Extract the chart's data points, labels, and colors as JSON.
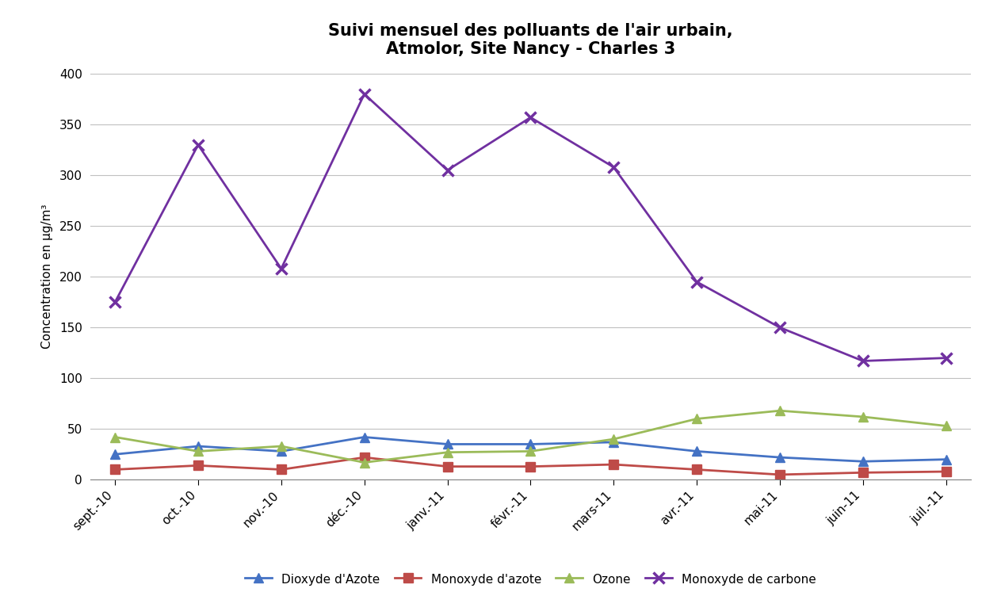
{
  "title_line1": "Suivi mensuel des polluants de l'air urbain,",
  "title_line2": "Atmolor, Site Nancy - Charles 3",
  "ylabel": "Concentration en µg/m³",
  "months": [
    "sept.-10",
    "oct.-10",
    "nov.-10",
    "déc.-10",
    "janv.-11",
    "févr.-11",
    "mars-11",
    "avr.-11",
    "mai-11",
    "juin-11",
    "juil.-11"
  ],
  "dioxyde_azote": [
    25,
    33,
    28,
    42,
    35,
    35,
    37,
    28,
    22,
    18,
    20
  ],
  "monoxyde_azote": [
    10,
    14,
    10,
    22,
    13,
    13,
    15,
    10,
    5,
    7,
    8
  ],
  "ozone": [
    42,
    28,
    33,
    17,
    27,
    28,
    40,
    60,
    68,
    62,
    53
  ],
  "monoxyde_carbone": [
    175,
    330,
    208,
    380,
    305,
    357,
    308,
    195,
    150,
    117,
    120
  ],
  "ylim": [
    0,
    400
  ],
  "yticks": [
    0,
    50,
    100,
    150,
    200,
    250,
    300,
    350,
    400
  ],
  "color_dioxyde_azote": "#4472C4",
  "color_monoxyde_azote": "#BE4B48",
  "color_ozone": "#9BBB59",
  "color_monoxyde_carbone": "#7030A0",
  "legend_labels": [
    "Dioxyde d'Azote",
    "Monoxyde d'azote",
    "Ozone",
    "Monoxyde de carbone"
  ],
  "bg_color": "#FFFFFF",
  "plot_bg_color": "#FFFFFF",
  "grid_color": "#C0C0C0",
  "title_fontsize": 15,
  "axis_label_fontsize": 11,
  "tick_fontsize": 11,
  "legend_fontsize": 11
}
